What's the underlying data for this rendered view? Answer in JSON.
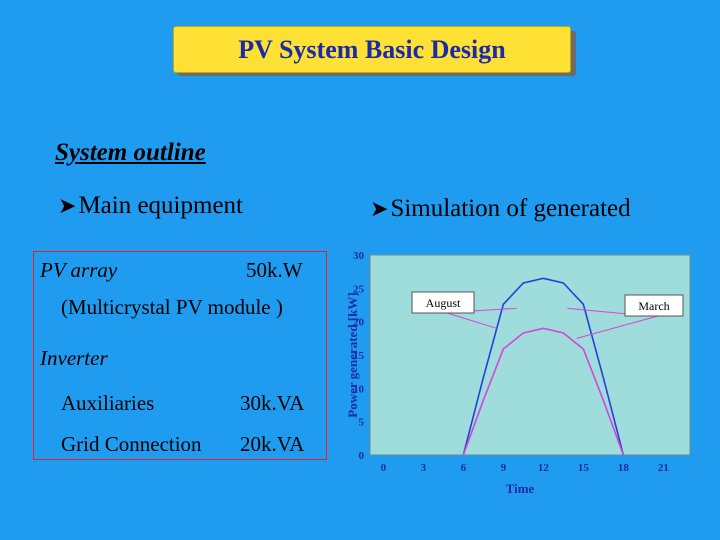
{
  "title": "PV System Basic Design",
  "section_heading": "System outline",
  "bullets": {
    "main_equipment": "Main equipment",
    "simulation": "Simulation of generated"
  },
  "equipment": {
    "pv_array_label": "PV array",
    "pv_array_value": "50k.W",
    "pv_module": "(Multicrystal PV module )",
    "inverter_label": "Inverter",
    "auxiliaries_label": "Auxiliaries",
    "auxiliaries_value": "30k.VA",
    "grid_label": "Grid Connection",
    "grid_value": "20k.VA"
  },
  "colors": {
    "background": "#1f9cf0",
    "title_box": "#ffe135",
    "title_text": "#1a2aa8",
    "plot_area": "#9fdcdc",
    "equipment_border": "#e6202a",
    "august_line": "#2a3fd6",
    "march_line": "#d645d6"
  },
  "chart_data": {
    "type": "line",
    "xlabel": "Time",
    "ylabel": "Power generated [kW]",
    "xlim": [
      -1,
      23
    ],
    "ylim": [
      0,
      30
    ],
    "x_ticks": [
      0,
      3,
      6,
      9,
      12,
      15,
      18,
      21
    ],
    "y_ticks": [
      0,
      5,
      10,
      15,
      20,
      25,
      30
    ],
    "series": [
      {
        "name": "August",
        "x": [
          6,
          7.5,
          9,
          10.5,
          12,
          13.5,
          15,
          16.5,
          18
        ],
        "y": [
          0,
          11.6,
          22.6,
          25.8,
          26.5,
          25.8,
          22.6,
          11.6,
          0
        ]
      },
      {
        "name": "March",
        "x": [
          6,
          7.5,
          9,
          10.5,
          12,
          13.5,
          15,
          16.5,
          18
        ],
        "y": [
          0,
          8.2,
          15.9,
          18.3,
          19.0,
          18.3,
          15.9,
          8.2,
          0
        ]
      }
    ],
    "annotations": [
      "August",
      "March"
    ],
    "grid": false,
    "legend": "callouts"
  }
}
